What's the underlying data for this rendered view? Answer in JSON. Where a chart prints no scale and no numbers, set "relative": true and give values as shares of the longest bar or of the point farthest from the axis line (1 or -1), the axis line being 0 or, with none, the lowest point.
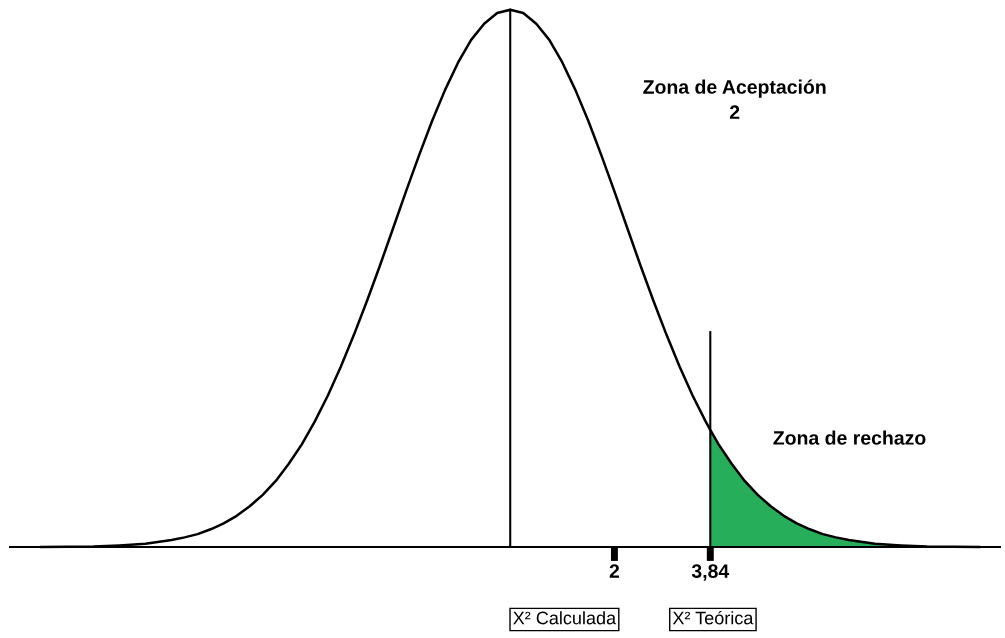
{
  "chart_data": {
    "type": "line",
    "relative": true,
    "xlim": [
      -9.6,
      9.4
    ],
    "xticks": [
      {
        "value": 2,
        "label": "2"
      },
      {
        "value": 3.84,
        "label": "3,84"
      }
    ],
    "series": [
      {
        "color": "#000000",
        "x": [
          -9,
          -8.5,
          -8,
          -7.5,
          -7,
          -6.5,
          -6.25,
          -6,
          -5.75,
          -5.5,
          -5.25,
          -5,
          -4.75,
          -4.5,
          -4.25,
          -4,
          -3.75,
          -3.5,
          -3.25,
          -3,
          -2.75,
          -2.5,
          -2.25,
          -2,
          -1.75,
          -1.5,
          -1.25,
          -1,
          -0.75,
          -0.5,
          -0.25,
          0,
          0.25,
          0.5,
          0.75,
          1,
          1.25,
          1.5,
          1.75,
          2,
          2.25,
          2.5,
          2.75,
          3,
          3.25,
          3.5,
          3.75,
          3.84,
          4,
          4.25,
          4.5,
          4.75,
          5,
          5.25,
          5.5,
          5.75,
          6,
          6.25,
          6.5,
          7,
          7.5,
          8,
          8.5,
          9
        ],
        "values": [
          0,
          0.0006,
          0.001,
          0.003,
          0.006,
          0.013,
          0.018,
          0.024,
          0.033,
          0.044,
          0.058,
          0.076,
          0.097,
          0.123,
          0.155,
          0.191,
          0.234,
          0.282,
          0.336,
          0.395,
          0.458,
          0.524,
          0.593,
          0.662,
          0.729,
          0.793,
          0.851,
          0.902,
          0.944,
          0.974,
          0.994,
          1,
          0.994,
          0.974,
          0.944,
          0.902,
          0.851,
          0.793,
          0.729,
          0.662,
          0.593,
          0.524,
          0.458,
          0.395,
          0.336,
          0.282,
          0.234,
          0.218,
          0.191,
          0.155,
          0.123,
          0.097,
          0.076,
          0.058,
          0.044,
          0.033,
          0.024,
          0.018,
          0.013,
          0.006,
          0.003,
          0.001,
          0.0006,
          0
        ]
      },
      {
        "type": "area",
        "color": "#27ae5a",
        "x": [
          3.84,
          4,
          4.25,
          4.5,
          4.75,
          5,
          5.25,
          5.5,
          5.75,
          6,
          6.25,
          6.5,
          7,
          7.5,
          8,
          8.5,
          9
        ],
        "values": [
          0.218,
          0.191,
          0.155,
          0.123,
          0.097,
          0.076,
          0.058,
          0.044,
          0.033,
          0.024,
          0.018,
          0.013,
          0.006,
          0.003,
          0.001,
          0.0006,
          0
        ]
      }
    ],
    "ref_lines": [
      {
        "axis": "x",
        "value": 0
      },
      {
        "axis": "x",
        "value": 3.84
      }
    ],
    "annotations": [
      "Zona de Aceptación\n2",
      "Zona de rechazo",
      "X² Calculada",
      "X² Teórica"
    ],
    "grid": false,
    "legend": false,
    "marker": "none",
    "line_style": "solid"
  }
}
